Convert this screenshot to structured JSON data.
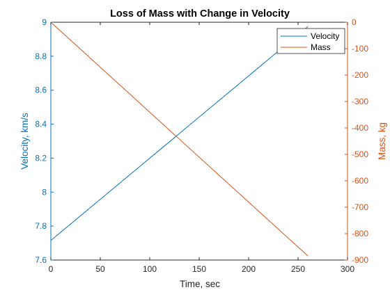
{
  "chart_data": {
    "type": "line",
    "title": "Loss of Mass with Change in Velocity",
    "xlabel": "Time, sec",
    "ylabel_left": "Velocity, km/s",
    "ylabel_right": "Mass, kg",
    "xlim": [
      0,
      300
    ],
    "ylim_left": [
      7.6,
      9
    ],
    "ylim_right": [
      -900,
      0
    ],
    "xticks": [
      "0",
      "50",
      "100",
      "150",
      "200",
      "250",
      "300"
    ],
    "yticks_left": [
      "7.6",
      "7.8",
      "8",
      "8.2",
      "8.4",
      "8.6",
      "8.8",
      "9"
    ],
    "yticks_right": [
      "-900",
      "-800",
      "-700",
      "-600",
      "-500",
      "-400",
      "-300",
      "-200",
      "-100",
      "0"
    ],
    "grid": false,
    "legend_position": "top-right",
    "colors": {
      "left_axis": "#0072BD",
      "right_axis": "#D95319",
      "frame": "#262626"
    },
    "series": [
      {
        "name": "Velocity",
        "axis": "left",
        "color": "#0072BD",
        "x": [
          0,
          260
        ],
        "y": [
          7.715,
          8.975
        ]
      },
      {
        "name": "Mass",
        "axis": "right",
        "color": "#D95319",
        "x": [
          0,
          260
        ],
        "y": [
          0,
          -885
        ]
      }
    ]
  }
}
